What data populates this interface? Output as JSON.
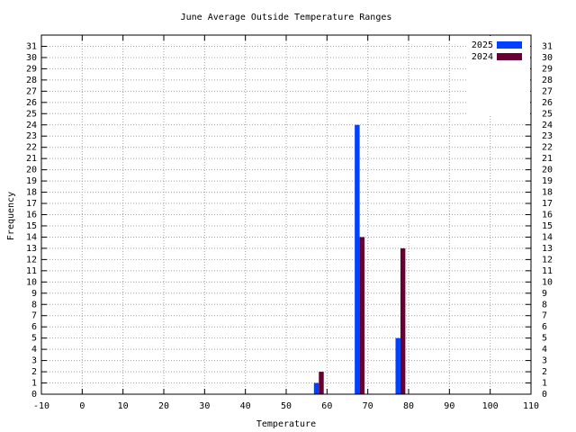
{
  "chart_data": {
    "type": "bar",
    "title": "June Average Outside Temperature Ranges",
    "x_label": "Temperature",
    "y_label": "Frequency",
    "x": [
      58,
      68,
      78
    ],
    "series": [
      {
        "name": "2025",
        "color": "#0040ff",
        "values": [
          1,
          24,
          5
        ]
      },
      {
        "name": "2024",
        "color": "#660033",
        "values": [
          2,
          14,
          13
        ]
      }
    ],
    "xlim": [
      -10,
      110
    ],
    "xticks": [
      -10,
      0,
      10,
      20,
      30,
      40,
      50,
      60,
      70,
      80,
      90,
      100,
      110
    ],
    "ylim": [
      0,
      32
    ],
    "yticks": [
      0,
      1,
      2,
      3,
      4,
      5,
      6,
      7,
      8,
      9,
      10,
      11,
      12,
      13,
      14,
      15,
      16,
      17,
      18,
      19,
      20,
      21,
      22,
      23,
      24,
      25,
      26,
      27,
      28,
      29,
      30,
      31
    ],
    "y2lim": [
      0,
      32
    ],
    "y2ticks": [
      0,
      1,
      2,
      3,
      4,
      5,
      6,
      7,
      8,
      9,
      10,
      11,
      12,
      13,
      14,
      15,
      16,
      17,
      18,
      19,
      20,
      21,
      22,
      23,
      24,
      25,
      26,
      27,
      28,
      29,
      30,
      31
    ],
    "grid": true,
    "legend_position": "top-right"
  }
}
